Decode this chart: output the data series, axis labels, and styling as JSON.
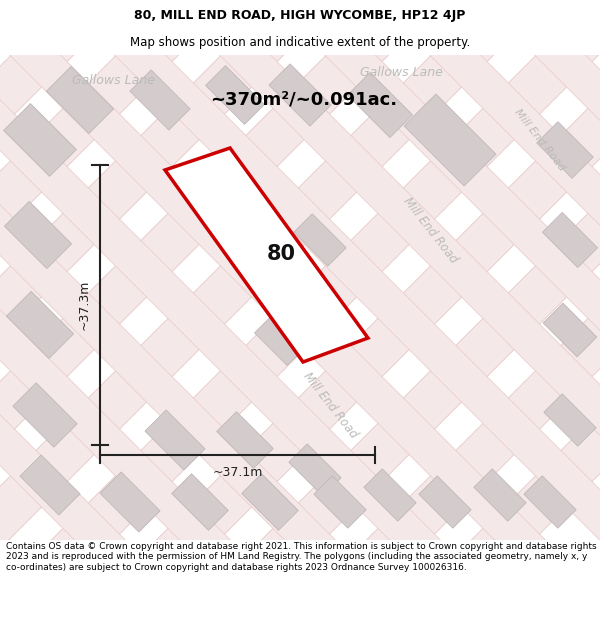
{
  "title": "80, MILL END ROAD, HIGH WYCOMBE, HP12 4JP",
  "subtitle": "Map shows position and indicative extent of the property.",
  "area_label": "~370m²/~0.091ac.",
  "property_number": "80",
  "dim_width": "~37.1m",
  "dim_height": "~37.3m",
  "footer": "Contains OS data © Crown copyright and database right 2021. This information is subject to Crown copyright and database rights 2023 and is reproduced with the permission of HM Land Registry. The polygons (including the associated geometry, namely x, y co-ordinates) are subject to Crown copyright and database rights 2023 Ordnance Survey 100026316.",
  "map_bg": "#f7f3f3",
  "road_fill": "#f5e8e8",
  "road_line": "#e8c8c8",
  "building_fill": "#d4cccc",
  "building_edge": "#c0b8b8",
  "plot_fill": "#ffffff",
  "plot_edge": "#cc0000",
  "dim_color": "#222222",
  "street_color": "#bbbbbb",
  "title_fontsize": 9,
  "subtitle_fontsize": 8.5,
  "area_fontsize": 13,
  "number_fontsize": 15,
  "dim_fontsize": 9,
  "street_fontsize": 9,
  "footer_fontsize": 6.5
}
